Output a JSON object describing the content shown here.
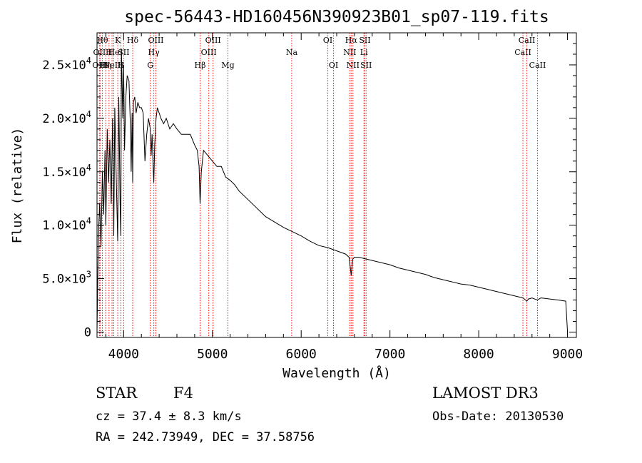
{
  "chart_data": {
    "type": "line",
    "title": "spec-56443-HD160456N390923B01_sp07-119.fits",
    "xlabel": "Wavelength (Å)",
    "ylabel": "Flux (relative)",
    "xlim": [
      3700,
      9100
    ],
    "ylim": [
      -500,
      28000
    ],
    "x_ticks": [
      4000,
      5000,
      6000,
      7000,
      8000,
      9000
    ],
    "y_ticks": [
      {
        "value": 0,
        "mantissa": "0",
        "exponent": ""
      },
      {
        "value": 5000,
        "mantissa": "5.0×10",
        "exponent": "3"
      },
      {
        "value": 10000,
        "mantissa": "1.0×10",
        "exponent": "4"
      },
      {
        "value": 15000,
        "mantissa": "1.5×10",
        "exponent": "4"
      },
      {
        "value": 20000,
        "mantissa": "2.0×10",
        "exponent": "4"
      },
      {
        "value": 25000,
        "mantissa": "2.5×10",
        "exponent": "4"
      }
    ],
    "series": [
      {
        "name": "spectrum",
        "x": [
          3700,
          3705,
          3715,
          3730,
          3745,
          3760,
          3775,
          3790,
          3800,
          3815,
          3830,
          3845,
          3860,
          3875,
          3889,
          3900,
          3915,
          3933,
          3945,
          3960,
          3968,
          3975,
          3990,
          4000,
          4010,
          4025,
          4040,
          4060,
          4075,
          4085,
          4095,
          4102,
          4110,
          4125,
          4140,
          4160,
          4180,
          4200,
          4220,
          4240,
          4260,
          4280,
          4300,
          4310,
          4320,
          4330,
          4340,
          4350,
          4365,
          4380,
          4400,
          4420,
          4450,
          4480,
          4520,
          4560,
          4600,
          4650,
          4700,
          4750,
          4800,
          4830,
          4850,
          4861,
          4875,
          4900,
          4950,
          5000,
          5050,
          5100,
          5150,
          5200,
          5250,
          5300,
          5350,
          5400,
          5450,
          5500,
          5600,
          5700,
          5800,
          5900,
          6000,
          6100,
          6200,
          6300,
          6400,
          6500,
          6540,
          6563,
          6580,
          6600,
          6650,
          6700,
          6800,
          6900,
          7000,
          7100,
          7200,
          7300,
          7400,
          7500,
          7600,
          7700,
          7800,
          7900,
          8000,
          8100,
          8200,
          8300,
          8400,
          8500,
          8542,
          8560,
          8600,
          8662,
          8700,
          8800,
          8900,
          8980,
          9000
        ],
        "y": [
          0,
          3000,
          9000,
          12000,
          8000,
          15000,
          11000,
          17000,
          10000,
          19000,
          14000,
          18000,
          12000,
          20000,
          9000,
          21000,
          15000,
          8500,
          22000,
          12000,
          9000,
          26500,
          20000,
          25000,
          17000,
          22000,
          24000,
          23500,
          19500,
          15000,
          20500,
          14000,
          21500,
          22000,
          20500,
          21500,
          21000,
          21000,
          20500,
          16000,
          18500,
          20000,
          19000,
          16500,
          18500,
          16000,
          14000,
          17500,
          20000,
          21000,
          20500,
          20000,
          19500,
          20000,
          19000,
          19500,
          19000,
          18500,
          18500,
          18500,
          17500,
          17000,
          15500,
          12000,
          15000,
          17000,
          16500,
          16000,
          15500,
          15500,
          14500,
          14200,
          13800,
          13200,
          12800,
          12400,
          12000,
          11600,
          10800,
          10300,
          9800,
          9400,
          9000,
          8500,
          8100,
          7900,
          7600,
          7300,
          7000,
          5300,
          6800,
          7000,
          7000,
          6900,
          6700,
          6500,
          6300,
          6000,
          5800,
          5600,
          5400,
          5100,
          4900,
          4700,
          4500,
          4400,
          4200,
          4000,
          3800,
          3600,
          3400,
          3200,
          2900,
          3100,
          3200,
          3000,
          3200,
          3100,
          3000,
          2900,
          0
        ]
      }
    ],
    "lines": [
      {
        "wavelength": 3727,
        "label": "OII",
        "row": 1
      },
      {
        "wavelength": 3735,
        "label": "OIII",
        "row": 2
      },
      {
        "wavelength": 3760,
        "label": "Hθ",
        "row": 0
      },
      {
        "wavelength": 3797,
        "label": "Hη",
        "row": 2
      },
      {
        "wavelength": 3835,
        "label": "H",
        "row": 1
      },
      {
        "wavelength": 3869,
        "label": "NeII",
        "row": 2
      },
      {
        "wavelength": 3889,
        "label": "He",
        "row": 1
      },
      {
        "wavelength": 3934,
        "label": "K",
        "row": 0
      },
      {
        "wavelength": 3969,
        "label": "H",
        "row": 2
      },
      {
        "wavelength": 4000,
        "label": "SII",
        "row": 1
      },
      {
        "wavelength": 4102,
        "label": "Hδ",
        "row": 0
      },
      {
        "wavelength": 4300,
        "label": "G",
        "row": 2
      },
      {
        "wavelength": 4340,
        "label": "Hγ",
        "row": 1
      },
      {
        "wavelength": 4363,
        "label": "OIII",
        "row": 0
      },
      {
        "wavelength": 4861,
        "label": "Hβ",
        "row": 2
      },
      {
        "wavelength": 4959,
        "label": "OIII",
        "row": 1
      },
      {
        "wavelength": 5007,
        "label": "OIII",
        "row": 0
      },
      {
        "wavelength": 5175,
        "label": "Mg",
        "row": 2
      },
      {
        "wavelength": 5893,
        "label": "Na",
        "row": 1
      },
      {
        "wavelength": 6300,
        "label": "OI",
        "row": 0
      },
      {
        "wavelength": 6364,
        "label": "OI",
        "row": 2
      },
      {
        "wavelength": 6548,
        "label": "NII",
        "row": 1
      },
      {
        "wavelength": 6563,
        "label": "Hα",
        "row": 0
      },
      {
        "wavelength": 6583,
        "label": "NII",
        "row": 2
      },
      {
        "wavelength": 6707,
        "label": "Li",
        "row": 1
      },
      {
        "wavelength": 6717,
        "label": "SII",
        "row": 0
      },
      {
        "wavelength": 6731,
        "label": "SII",
        "row": 2
      },
      {
        "wavelength": 8498,
        "label": "CaII",
        "row": 1
      },
      {
        "wavelength": 8542,
        "label": "CaII",
        "row": 0
      },
      {
        "wavelength": 8662,
        "label": "CaII",
        "row": 2
      }
    ],
    "line_color": "#ff0000",
    "grid": false
  },
  "info": {
    "object_type": "STAR",
    "spectral_class": "F4",
    "survey": "LAMOST DR3",
    "cz": "cz = 37.4 ± 8.3 km/s",
    "obs_date": "Obs-Date: 20130530",
    "ra_dec": "RA = 242.73949, DEC =  37.58756"
  }
}
